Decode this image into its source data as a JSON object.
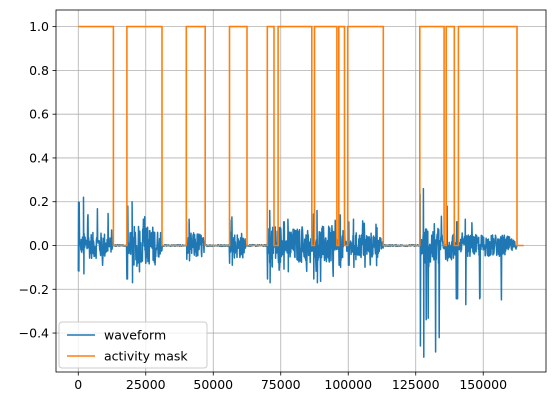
{
  "chart_data": {
    "type": "line",
    "title": "",
    "xlabel": "",
    "ylabel": "",
    "xlim": [
      -8250,
      173250
    ],
    "ylim": [
      -0.578,
      1.076
    ],
    "grid": true,
    "xticks": [
      0,
      25000,
      50000,
      75000,
      100000,
      125000,
      150000
    ],
    "xtick_labels": [
      "0",
      "25000",
      "50000",
      "75000",
      "100000",
      "125000",
      "150000"
    ],
    "yticks": [
      -0.4,
      -0.2,
      0.0,
      0.2,
      0.4,
      0.6,
      0.8,
      1.0
    ],
    "ytick_labels": [
      "−0.4",
      "−0.2",
      "0.0",
      "0.2",
      "0.4",
      "0.6",
      "0.8",
      "1.0"
    ],
    "legend_position": "lower-left",
    "series": [
      {
        "name": "waveform",
        "color": "#1f77b4",
        "x_range": [
          0,
          162500
        ],
        "baseline": 0.0,
        "bursts": [
          {
            "start": 0,
            "end": 13000,
            "peak_pos": 0.22,
            "peak_neg": -0.13,
            "typical": 0.06
          },
          {
            "start": 18000,
            "end": 31000,
            "peak_pos": 0.2,
            "peak_neg": -0.17,
            "typical": 0.09
          },
          {
            "start": 40000,
            "end": 47000,
            "peak_pos": 0.12,
            "peak_neg": -0.07,
            "typical": 0.06
          },
          {
            "start": 56000,
            "end": 62000,
            "peak_pos": 0.13,
            "peak_neg": -0.09,
            "typical": 0.06
          },
          {
            "start": 70000,
            "end": 76000,
            "peak_pos": 0.16,
            "peak_neg": -0.17,
            "typical": 0.1
          },
          {
            "start": 76000,
            "end": 87000,
            "peak_pos": 0.12,
            "peak_neg": -0.12,
            "typical": 0.08
          },
          {
            "start": 87000,
            "end": 96500,
            "peak_pos": 0.16,
            "peak_neg": -0.17,
            "typical": 0.09
          },
          {
            "start": 96500,
            "end": 100000,
            "peak_pos": 0.14,
            "peak_neg": -0.1,
            "typical": 0.07
          },
          {
            "start": 100000,
            "end": 113000,
            "peak_pos": 0.12,
            "peak_neg": -0.1,
            "typical": 0.06
          },
          {
            "start": 126500,
            "end": 135500,
            "peak_pos": 0.26,
            "peak_neg": -0.51,
            "typical": 0.1
          },
          {
            "start": 136000,
            "end": 140000,
            "peak_pos": 0.18,
            "peak_neg": -0.07,
            "typical": 0.07
          },
          {
            "start": 140000,
            "end": 162500,
            "peak_pos": 0.12,
            "peak_neg": -0.27,
            "typical": 0.05
          }
        ]
      },
      {
        "name": "activity mask",
        "color": "#ff7f0e",
        "x": [
          0,
          13000,
          13000,
          18000,
          18000,
          31000,
          31000,
          40000,
          40000,
          47000,
          47000,
          56000,
          56000,
          62500,
          62500,
          70000,
          70000,
          72500,
          72500,
          74000,
          74000,
          86500,
          86500,
          87500,
          87500,
          95800,
          95800,
          96500,
          96500,
          98600,
          98600,
          99800,
          99800,
          113000,
          113000,
          126500,
          126500,
          135500,
          135500,
          136300,
          136300,
          139300,
          139300,
          140800,
          140800,
          162500,
          162500,
          165000
        ],
        "values": [
          1,
          1,
          0,
          0,
          1,
          1,
          0,
          0,
          1,
          1,
          0,
          0,
          1,
          1,
          0,
          0,
          1,
          1,
          0,
          0,
          1,
          1,
          0,
          0,
          1,
          1,
          0,
          0,
          1,
          1,
          0,
          0,
          1,
          1,
          0,
          0,
          1,
          1,
          0,
          0,
          1,
          1,
          0,
          0,
          1,
          1,
          0,
          0
        ]
      }
    ]
  }
}
